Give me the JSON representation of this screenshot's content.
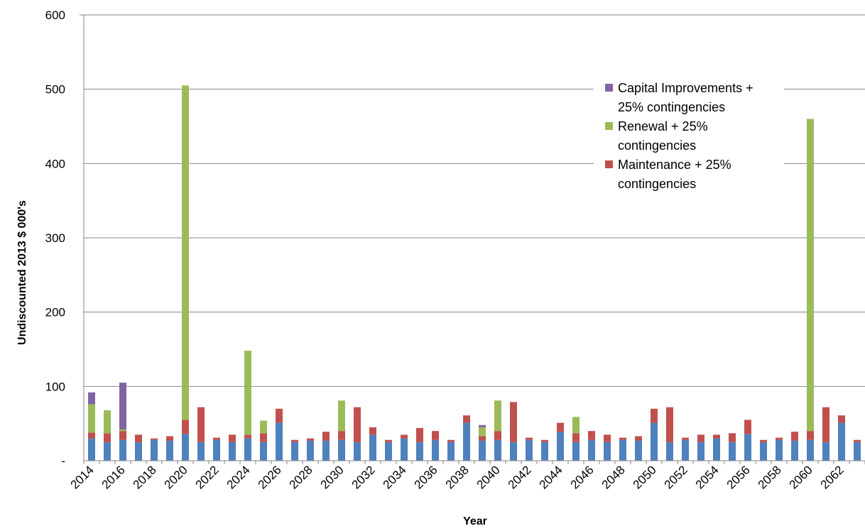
{
  "chart_data": {
    "type": "bar",
    "stacked": true,
    "title": "",
    "xlabel": "Year",
    "ylabel": "Undiscounted 2013 $ 000's",
    "ylim": [
      0,
      600
    ],
    "y_ticks": [
      "-",
      "100",
      "200",
      "300",
      "400",
      "500",
      "600"
    ],
    "grid": true,
    "legend_position": "top-right",
    "categories": [
      "2014",
      "2015",
      "2016",
      "2017",
      "2018",
      "2019",
      "2020",
      "2021",
      "2022",
      "2023",
      "2024",
      "2025",
      "2026",
      "2027",
      "2028",
      "2029",
      "2030",
      "2031",
      "2032",
      "2033",
      "2034",
      "2035",
      "2036",
      "2037",
      "2038",
      "2039",
      "2040",
      "2041",
      "2042",
      "2043",
      "2044",
      "2045",
      "2046",
      "2047",
      "2048",
      "2049",
      "2050",
      "2051",
      "2052",
      "2053",
      "2054",
      "2055",
      "2056",
      "2057",
      "2058",
      "2059",
      "2060",
      "2061",
      "2062",
      "2063"
    ],
    "x_tick_labels": [
      "2014",
      "2016",
      "2018",
      "2020",
      "2022",
      "2024",
      "2026",
      "2028",
      "2030",
      "2032",
      "2034",
      "2036",
      "2038",
      "2040",
      "2042",
      "2044",
      "2046",
      "2048",
      "2050",
      "2052",
      "2054",
      "2056",
      "2058",
      "2060",
      "2062"
    ],
    "series": [
      {
        "key": "base",
        "color": "#4f81bd",
        "values": [
          30,
          25,
          28,
          25,
          28,
          27,
          36,
          25,
          28,
          25,
          30,
          25,
          51,
          25,
          27,
          27,
          28,
          25,
          35,
          25,
          30,
          25,
          28,
          25,
          51,
          27,
          28,
          25,
          28,
          25,
          39,
          25,
          28,
          25,
          28,
          27,
          51,
          25,
          28,
          25,
          30,
          25,
          36,
          25,
          28,
          27,
          28,
          25,
          51,
          25
        ]
      },
      {
        "key": "maintenance",
        "name": "Maintenance + 25% contingencies",
        "color": "#c0504d",
        "values": [
          8,
          12,
          12,
          10,
          2,
          6,
          19,
          47,
          3,
          10,
          5,
          12,
          19,
          3,
          3,
          12,
          12,
          47,
          10,
          3,
          5,
          19,
          12,
          3,
          10,
          6,
          12,
          54,
          3,
          3,
          12,
          12,
          12,
          10,
          3,
          6,
          19,
          47,
          3,
          10,
          5,
          12,
          19,
          3,
          3,
          12,
          12,
          47,
          10,
          3
        ]
      },
      {
        "key": "renewal",
        "name": "Renewal + 25% contingencies",
        "color": "#9bbb59",
        "values": [
          38,
          31,
          2,
          0,
          0,
          0,
          450,
          0,
          0,
          0,
          113,
          17,
          0,
          0,
          0,
          0,
          41,
          0,
          0,
          0,
          0,
          0,
          0,
          0,
          0,
          12,
          41,
          0,
          0,
          0,
          0,
          22,
          0,
          0,
          0,
          0,
          0,
          0,
          0,
          0,
          0,
          0,
          0,
          0,
          0,
          0,
          420,
          0,
          0,
          0
        ]
      },
      {
        "key": "capital",
        "name": "Capital Improvements + 25% contingencies",
        "color": "#8064a2",
        "values": [
          16,
          0,
          63,
          0,
          0,
          0,
          0,
          0,
          0,
          0,
          0,
          0,
          0,
          0,
          0,
          0,
          0,
          0,
          0,
          0,
          0,
          0,
          0,
          0,
          0,
          3,
          0,
          0,
          0,
          0,
          0,
          0,
          0,
          0,
          0,
          0,
          0,
          0,
          0,
          0,
          0,
          0,
          0,
          0,
          0,
          0,
          0,
          0,
          0,
          0
        ]
      }
    ],
    "legend": [
      {
        "lines": [
          "Capital Improvements +",
          "25% contingencies"
        ],
        "color": "#8064a2"
      },
      {
        "lines": [
          "Renewal + 25%",
          "contingencies"
        ],
        "color": "#9bbb59"
      },
      {
        "lines": [
          "Maintenance + 25%",
          "contingencies"
        ],
        "color": "#c0504d"
      }
    ]
  }
}
